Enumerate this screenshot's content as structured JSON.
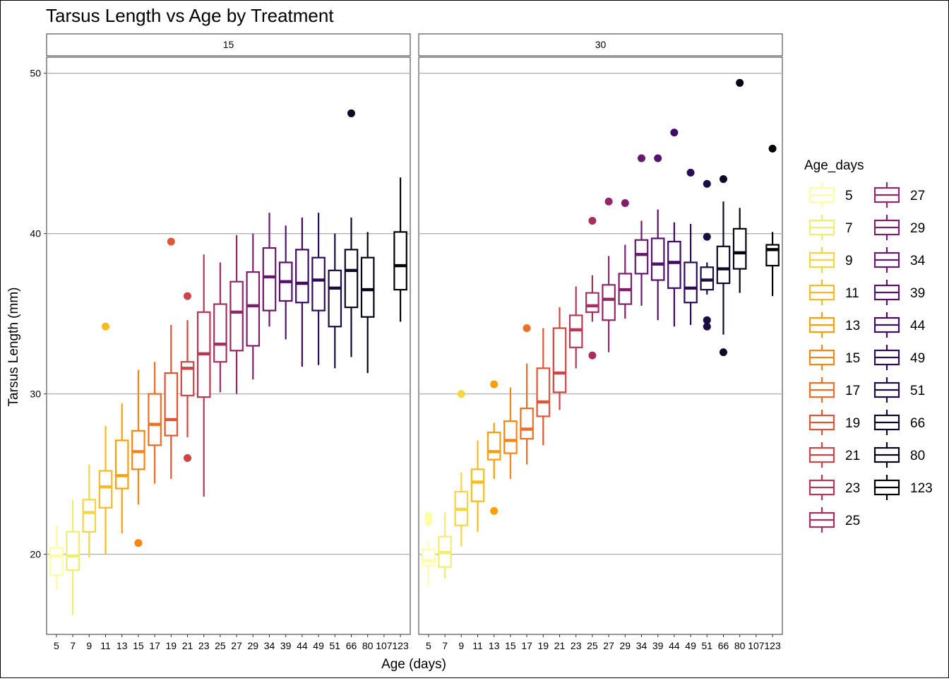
{
  "chart_data": {
    "type": "boxplot",
    "title": "Tarsus Length vs Age by Treatment",
    "xlabel": "Age (days)",
    "ylabel": "Tarsus Length (mm)",
    "ylim": [
      15,
      51
    ],
    "yticks": [
      20,
      30,
      40,
      50
    ],
    "grid": "horizontal major lines",
    "legend": {
      "title": "Age_days",
      "position": "right",
      "items": [
        {
          "label": "5",
          "color": "#FCFFA4"
        },
        {
          "label": "7",
          "color": "#F1ED71"
        },
        {
          "label": "9",
          "color": "#F6D543"
        },
        {
          "label": "11",
          "color": "#FBBA1F"
        },
        {
          "label": "13",
          "color": "#FC9F07"
        },
        {
          "label": "15",
          "color": "#F8850F"
        },
        {
          "label": "17",
          "color": "#EF6E21"
        },
        {
          "label": "19",
          "color": "#E05536"
        },
        {
          "label": "21",
          "color": "#CF4446"
        },
        {
          "label": "23",
          "color": "#BA3655"
        },
        {
          "label": "25",
          "color": "#A92E5E"
        },
        {
          "label": "27",
          "color": "#932667"
        },
        {
          "label": "29",
          "color": "#7F1E6C"
        },
        {
          "label": "34",
          "color": "#6A176E"
        },
        {
          "label": "39",
          "color": "#56106E"
        },
        {
          "label": "44",
          "color": "#400A67"
        },
        {
          "label": "49",
          "color": "#2C0B5A"
        },
        {
          "label": "51",
          "color": "#1B0C41"
        },
        {
          "label": "66",
          "color": "#0E0829"
        },
        {
          "label": "80",
          "color": "#050316"
        },
        {
          "label": "123",
          "color": "#000004"
        }
      ]
    },
    "x_ticks": [
      "5",
      "7",
      "9",
      "11",
      "13",
      "15",
      "17",
      "19",
      "21",
      "23",
      "25",
      "27",
      "29",
      "34",
      "39",
      "44",
      "49",
      "51",
      "66",
      "80",
      "107",
      "123"
    ],
    "panels": [
      {
        "label": "15",
        "boxes": [
          {
            "x": "5",
            "color": "#FCFFA4",
            "min": 17.8,
            "q1": 18.7,
            "median": 19.9,
            "q3": 20.4,
            "max": 21.8,
            "outliers": []
          },
          {
            "x": "7",
            "color": "#F1ED71",
            "min": 16.2,
            "q1": 19.0,
            "median": 19.9,
            "q3": 21.4,
            "max": 23.4,
            "outliers": []
          },
          {
            "x": "9",
            "color": "#F6D543",
            "min": 19.8,
            "q1": 21.4,
            "median": 22.6,
            "q3": 23.4,
            "max": 25.6,
            "outliers": []
          },
          {
            "x": "11",
            "color": "#FBBA1F",
            "min": 20.0,
            "q1": 22.9,
            "median": 24.2,
            "q3": 25.2,
            "max": 28.0,
            "outliers": [
              34.2
            ]
          },
          {
            "x": "13",
            "color": "#FC9F07",
            "min": 21.3,
            "q1": 24.1,
            "median": 24.9,
            "q3": 27.1,
            "max": 29.4,
            "outliers": []
          },
          {
            "x": "15",
            "color": "#F8850F",
            "min": 23.1,
            "q1": 25.3,
            "median": 26.4,
            "q3": 27.7,
            "max": 31.5,
            "outliers": [
              20.7
            ]
          },
          {
            "x": "17",
            "color": "#EF6E21",
            "min": 24.4,
            "q1": 26.8,
            "median": 28.1,
            "q3": 30.0,
            "max": 32.0,
            "outliers": []
          },
          {
            "x": "19",
            "color": "#E05536",
            "min": 24.7,
            "q1": 27.4,
            "median": 28.4,
            "q3": 31.3,
            "max": 34.3,
            "outliers": [
              39.5
            ]
          },
          {
            "x": "21",
            "color": "#CF4446",
            "min": 27.3,
            "q1": 29.9,
            "median": 31.6,
            "q3": 32.0,
            "max": 34.6,
            "outliers": [
              36.1,
              26.0
            ]
          },
          {
            "x": "23",
            "color": "#BA3655",
            "min": 23.6,
            "q1": 29.8,
            "median": 32.5,
            "q3": 35.1,
            "max": 38.7,
            "outliers": []
          },
          {
            "x": "25",
            "color": "#A92E5E",
            "min": 30.1,
            "q1": 32.0,
            "median": 33.1,
            "q3": 35.6,
            "max": 38.2,
            "outliers": []
          },
          {
            "x": "27",
            "color": "#932667",
            "min": 30.0,
            "q1": 32.7,
            "median": 35.1,
            "q3": 37.0,
            "max": 39.9,
            "outliers": []
          },
          {
            "x": "29",
            "color": "#7F1E6C",
            "min": 30.9,
            "q1": 33.0,
            "median": 35.5,
            "q3": 37.6,
            "max": 40.0,
            "outliers": []
          },
          {
            "x": "34",
            "color": "#6A176E",
            "min": 34.2,
            "q1": 35.2,
            "median": 37.3,
            "q3": 39.1,
            "max": 41.3,
            "outliers": []
          },
          {
            "x": "39",
            "color": "#56106E",
            "min": 33.4,
            "q1": 35.8,
            "median": 37.0,
            "q3": 38.2,
            "max": 40.5,
            "outliers": []
          },
          {
            "x": "44",
            "color": "#400A67",
            "min": 31.7,
            "q1": 35.7,
            "median": 36.9,
            "q3": 39.0,
            "max": 41.0,
            "outliers": []
          },
          {
            "x": "49",
            "color": "#2C0B5A",
            "min": 31.8,
            "q1": 35.2,
            "median": 37.1,
            "q3": 38.5,
            "max": 41.3,
            "outliers": []
          },
          {
            "x": "51",
            "color": "#1B0C41",
            "min": 31.6,
            "q1": 34.2,
            "median": 36.6,
            "q3": 37.7,
            "max": 40.0,
            "outliers": []
          },
          {
            "x": "66",
            "color": "#0E0829",
            "min": 32.3,
            "q1": 35.4,
            "median": 37.7,
            "q3": 39.0,
            "max": 41.0,
            "outliers": [
              47.5
            ]
          },
          {
            "x": "80",
            "color": "#050316",
            "min": 31.3,
            "q1": 34.8,
            "median": 36.5,
            "q3": 38.5,
            "max": 40.1,
            "outliers": []
          },
          {
            "x": "123",
            "color": "#000004",
            "min": 34.5,
            "q1": 36.5,
            "median": 38.0,
            "q3": 40.1,
            "max": 43.5,
            "outliers": []
          }
        ]
      },
      {
        "label": "30",
        "boxes": [
          {
            "x": "5",
            "color": "#FCFFA4",
            "min": 18.0,
            "q1": 19.3,
            "median": 19.6,
            "q3": 20.3,
            "max": 20.8,
            "outliers": [
              22.4,
              22.2,
              22.0
            ]
          },
          {
            "x": "7",
            "color": "#F1ED71",
            "min": 18.5,
            "q1": 19.2,
            "median": 20.1,
            "q3": 21.1,
            "max": 22.6,
            "outliers": []
          },
          {
            "x": "9",
            "color": "#F6D543",
            "min": 20.5,
            "q1": 21.8,
            "median": 22.8,
            "q3": 23.9,
            "max": 25.1,
            "outliers": [
              30.0
            ]
          },
          {
            "x": "11",
            "color": "#FBBA1F",
            "min": 21.4,
            "q1": 23.3,
            "median": 24.5,
            "q3": 25.3,
            "max": 27.1,
            "outliers": []
          },
          {
            "x": "13",
            "color": "#FC9F07",
            "min": 24.7,
            "q1": 25.9,
            "median": 26.4,
            "q3": 27.6,
            "max": 28.2,
            "outliers": [
              30.6,
              22.7
            ]
          },
          {
            "x": "15",
            "color": "#F8850F",
            "min": 24.7,
            "q1": 26.3,
            "median": 27.1,
            "q3": 28.3,
            "max": 30.4,
            "outliers": []
          },
          {
            "x": "17",
            "color": "#EF6E21",
            "min": 25.6,
            "q1": 27.2,
            "median": 27.8,
            "q3": 29.1,
            "max": 31.9,
            "outliers": [
              34.1
            ]
          },
          {
            "x": "19",
            "color": "#E05536",
            "min": 26.8,
            "q1": 28.6,
            "median": 29.5,
            "q3": 31.6,
            "max": 34.1,
            "outliers": []
          },
          {
            "x": "21",
            "color": "#CF4446",
            "min": 29.0,
            "q1": 30.1,
            "median": 31.3,
            "q3": 34.1,
            "max": 35.4,
            "outliers": []
          },
          {
            "x": "23",
            "color": "#BA3655",
            "min": 31.6,
            "q1": 32.9,
            "median": 34.0,
            "q3": 34.9,
            "max": 36.7,
            "outliers": []
          },
          {
            "x": "25",
            "color": "#A92E5E",
            "min": 34.5,
            "q1": 35.1,
            "median": 35.5,
            "q3": 36.3,
            "max": 37.4,
            "outliers": [
              40.8,
              32.4
            ]
          },
          {
            "x": "27",
            "color": "#932667",
            "min": 32.6,
            "q1": 34.6,
            "median": 35.9,
            "q3": 36.8,
            "max": 38.6,
            "outliers": [
              42.0
            ]
          },
          {
            "x": "29",
            "color": "#7F1E6C",
            "min": 34.7,
            "q1": 35.6,
            "median": 36.5,
            "q3": 37.5,
            "max": 39.3,
            "outliers": [
              41.9
            ]
          },
          {
            "x": "34",
            "color": "#6A176E",
            "min": 35.5,
            "q1": 37.5,
            "median": 38.7,
            "q3": 39.6,
            "max": 40.8,
            "outliers": [
              44.7
            ]
          },
          {
            "x": "39",
            "color": "#56106E",
            "min": 34.6,
            "q1": 37.1,
            "median": 38.1,
            "q3": 39.7,
            "max": 41.5,
            "outliers": [
              44.7
            ]
          },
          {
            "x": "44",
            "color": "#400A67",
            "min": 34.2,
            "q1": 36.6,
            "median": 38.2,
            "q3": 39.5,
            "max": 40.7,
            "outliers": [
              46.3
            ]
          },
          {
            "x": "49",
            "color": "#2C0B5A",
            "min": 34.3,
            "q1": 35.7,
            "median": 36.6,
            "q3": 38.2,
            "max": 40.6,
            "outliers": [
              43.8
            ]
          },
          {
            "x": "51",
            "color": "#1B0C41",
            "min": 36.2,
            "q1": 36.5,
            "median": 37.1,
            "q3": 37.9,
            "max": 38.2,
            "outliers": [
              43.1,
              39.8,
              34.6,
              34.2
            ]
          },
          {
            "x": "66",
            "color": "#0E0829",
            "min": 33.7,
            "q1": 36.9,
            "median": 37.8,
            "q3": 39.2,
            "max": 42.0,
            "outliers": [
              43.4,
              32.6
            ]
          },
          {
            "x": "80",
            "color": "#050316",
            "min": 36.3,
            "q1": 37.8,
            "median": 38.8,
            "q3": 40.3,
            "max": 41.6,
            "outliers": [
              49.4
            ]
          },
          {
            "x": "123",
            "color": "#000004",
            "min": 36.1,
            "q1": 38.0,
            "median": 39.0,
            "q3": 39.3,
            "max": 40.1,
            "outliers": [
              45.3
            ]
          }
        ]
      }
    ]
  }
}
